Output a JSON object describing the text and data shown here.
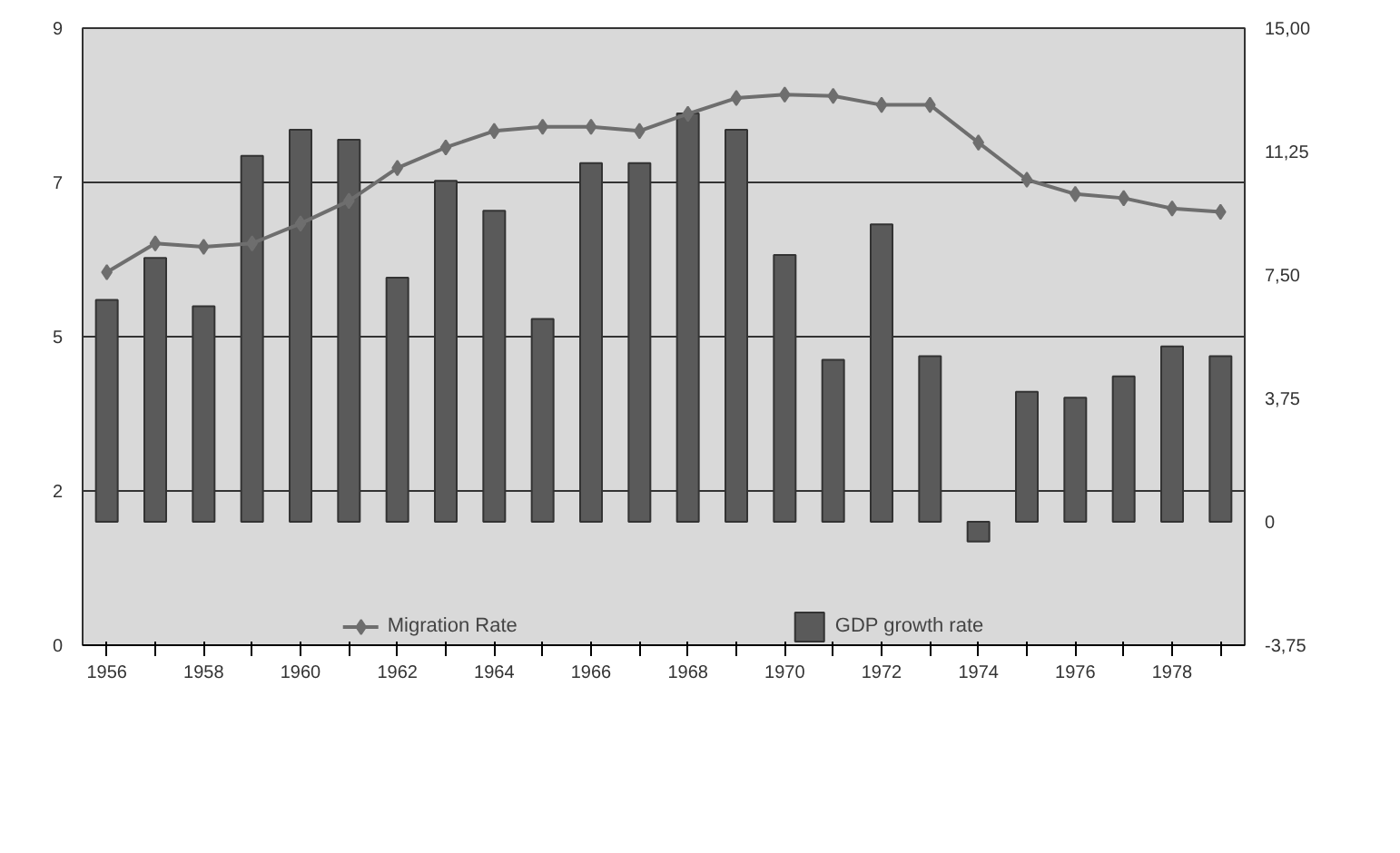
{
  "chart_data": {
    "type": "bar",
    "categories": [
      "1956",
      null,
      "1958",
      null,
      "1960",
      null,
      "1962",
      null,
      "1964",
      null,
      "1966",
      null,
      "1968",
      null,
      "1970",
      null,
      "1972",
      null,
      "1974",
      null,
      "1976",
      null,
      "1978",
      null
    ],
    "series": [
      {
        "name": "Migration Rate",
        "type": "line",
        "color": "#6e6e6e",
        "marker": "diamond",
        "values": [
          5.44,
          5.86,
          5.81,
          5.86,
          6.15,
          6.48,
          6.96,
          7.26,
          7.5,
          7.56,
          7.56,
          7.5,
          7.75,
          7.98,
          8.03,
          8.01,
          7.88,
          7.88,
          7.33,
          6.79,
          6.58,
          6.52,
          6.37,
          6.32
        ]
      },
      {
        "name": "GDP growth rate",
        "axis": "y2",
        "color": "#5a5a5a",
        "values": [
          6.74,
          8.02,
          6.55,
          11.12,
          11.91,
          11.61,
          7.42,
          10.36,
          9.45,
          6.16,
          10.9,
          10.9,
          12.41,
          11.91,
          8.11,
          4.92,
          9.04,
          5.03,
          -0.6,
          3.95,
          3.77,
          4.42,
          5.33,
          5.03
        ]
      }
    ],
    "ylim": [
      0,
      9
    ],
    "yticks": [
      0,
      {
        "value": 2.25,
        "label": "2"
      },
      {
        "value": 4.5,
        "label": "5"
      },
      {
        "value": 6.75,
        "label": "7"
      },
      9
    ],
    "y2lim": [
      -3.75,
      15
    ],
    "y2ticks": [
      {
        "value": -3.75,
        "label": "-3,75"
      },
      0,
      {
        "value": 3.75,
        "label": "3,75"
      },
      {
        "value": 7.5,
        "label": "7,50"
      },
      {
        "value": 11.25,
        "label": "11,25"
      },
      {
        "value": 15,
        "label": "15,00"
      }
    ],
    "grid": "y",
    "legend": "bottom"
  }
}
